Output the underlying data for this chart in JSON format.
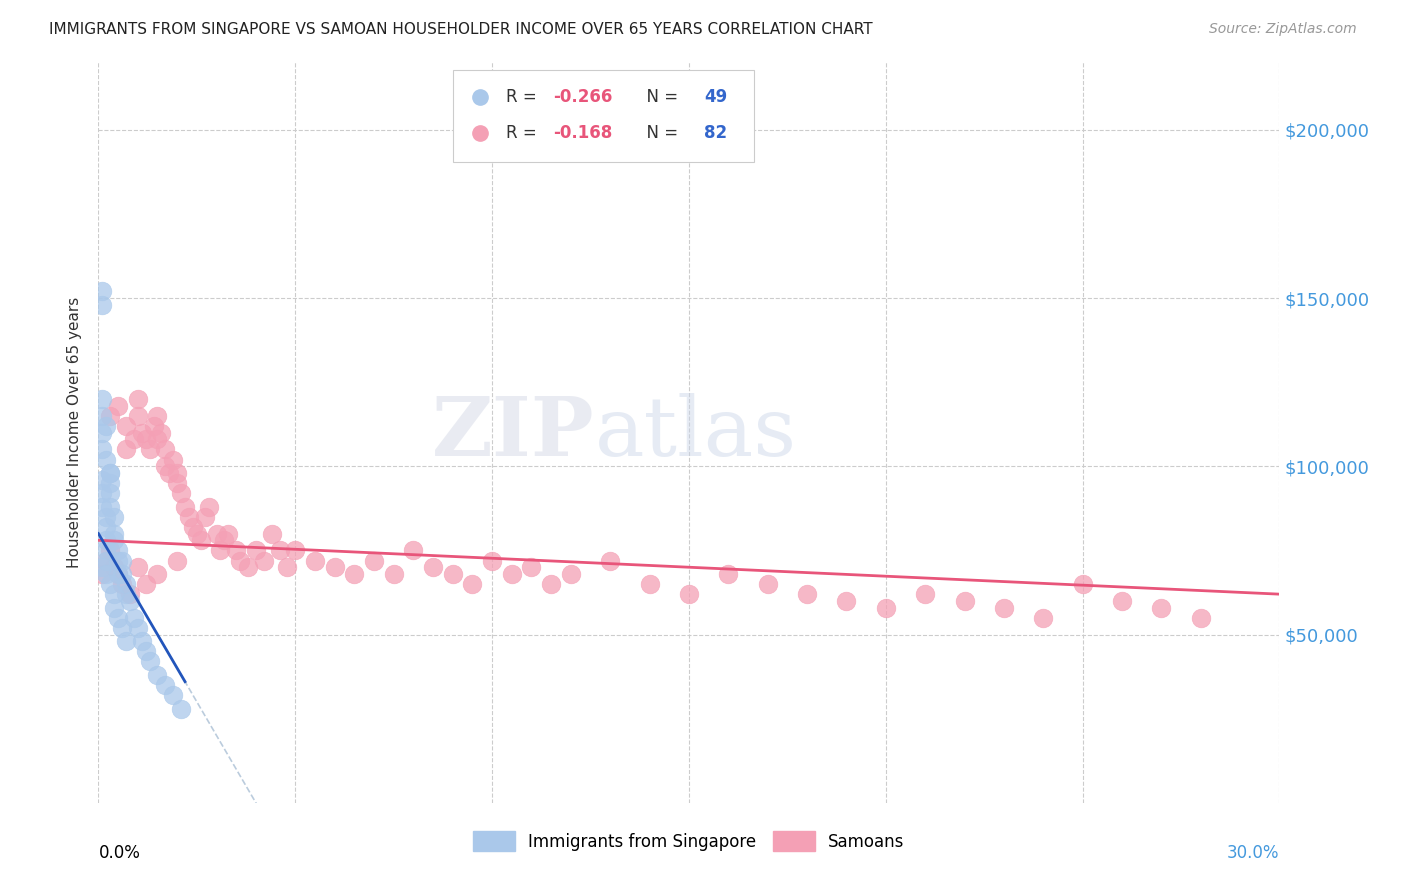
{
  "title": "IMMIGRANTS FROM SINGAPORE VS SAMOAN HOUSEHOLDER INCOME OVER 65 YEARS CORRELATION CHART",
  "source": "Source: ZipAtlas.com",
  "ylabel": "Householder Income Over 65 years",
  "ytick_labels": [
    "$50,000",
    "$100,000",
    "$150,000",
    "$200,000"
  ],
  "ytick_values": [
    50000,
    100000,
    150000,
    200000
  ],
  "xlim": [
    0.0,
    0.3
  ],
  "ylim": [
    0,
    220000
  ],
  "color_blue": "#aac8ea",
  "color_pink": "#f4a0b5",
  "trendline_blue": "#2255bb",
  "trendline_pink": "#e8557a",
  "trendline_dashed": "#bbccdd",
  "watermark_zip": "ZIP",
  "watermark_atlas": "atlas",
  "legend_r1": "R = ",
  "legend_v1": "-0.266",
  "legend_n1_label": "N = ",
  "legend_n1_val": "49",
  "legend_r2": "R = ",
  "legend_v2": "-0.168",
  "legend_n2_label": "N = ",
  "legend_n2_val": "82",
  "right_tick_color": "#4499dd",
  "sg_x": [
    0.001,
    0.001,
    0.001,
    0.001,
    0.001,
    0.002,
    0.002,
    0.002,
    0.002,
    0.002,
    0.003,
    0.003,
    0.003,
    0.003,
    0.004,
    0.004,
    0.004,
    0.005,
    0.005,
    0.005,
    0.006,
    0.006,
    0.007,
    0.007,
    0.008,
    0.009,
    0.01,
    0.011,
    0.012,
    0.013,
    0.001,
    0.002,
    0.003,
    0.004,
    0.001,
    0.002,
    0.003,
    0.001,
    0.002,
    0.001,
    0.004,
    0.005,
    0.006,
    0.007,
    0.015,
    0.017,
    0.019,
    0.021,
    0.001
  ],
  "sg_y": [
    148000,
    152000,
    96000,
    92000,
    88000,
    85000,
    82000,
    78000,
    75000,
    72000,
    98000,
    95000,
    92000,
    88000,
    85000,
    80000,
    78000,
    75000,
    72000,
    68000,
    72000,
    68000,
    65000,
    62000,
    60000,
    55000,
    52000,
    48000,
    45000,
    42000,
    70000,
    68000,
    65000,
    62000,
    105000,
    102000,
    98000,
    115000,
    112000,
    120000,
    58000,
    55000,
    52000,
    48000,
    38000,
    35000,
    32000,
    28000,
    110000
  ],
  "sa_x": [
    0.003,
    0.005,
    0.007,
    0.007,
    0.009,
    0.01,
    0.01,
    0.011,
    0.012,
    0.013,
    0.014,
    0.015,
    0.015,
    0.016,
    0.017,
    0.017,
    0.018,
    0.019,
    0.02,
    0.02,
    0.021,
    0.022,
    0.023,
    0.024,
    0.025,
    0.026,
    0.027,
    0.028,
    0.03,
    0.031,
    0.032,
    0.033,
    0.035,
    0.036,
    0.038,
    0.04,
    0.042,
    0.044,
    0.046,
    0.048,
    0.05,
    0.055,
    0.06,
    0.065,
    0.07,
    0.075,
    0.08,
    0.085,
    0.09,
    0.095,
    0.1,
    0.105,
    0.11,
    0.115,
    0.12,
    0.13,
    0.14,
    0.15,
    0.16,
    0.17,
    0.18,
    0.19,
    0.2,
    0.21,
    0.22,
    0.23,
    0.24,
    0.25,
    0.26,
    0.27,
    0.28,
    0.001,
    0.002,
    0.003,
    0.004,
    0.005,
    0.006,
    0.008,
    0.01,
    0.012,
    0.015,
    0.02
  ],
  "sa_y": [
    115000,
    118000,
    112000,
    105000,
    108000,
    120000,
    115000,
    110000,
    108000,
    105000,
    112000,
    108000,
    115000,
    110000,
    105000,
    100000,
    98000,
    102000,
    95000,
    98000,
    92000,
    88000,
    85000,
    82000,
    80000,
    78000,
    85000,
    88000,
    80000,
    75000,
    78000,
    80000,
    75000,
    72000,
    70000,
    75000,
    72000,
    80000,
    75000,
    70000,
    75000,
    72000,
    70000,
    68000,
    72000,
    68000,
    75000,
    70000,
    68000,
    65000,
    72000,
    68000,
    70000,
    65000,
    68000,
    72000,
    65000,
    62000,
    68000,
    65000,
    62000,
    60000,
    58000,
    62000,
    60000,
    58000,
    55000,
    65000,
    60000,
    58000,
    55000,
    68000,
    72000,
    75000,
    70000,
    68000,
    65000,
    62000,
    70000,
    65000,
    68000,
    72000
  ]
}
